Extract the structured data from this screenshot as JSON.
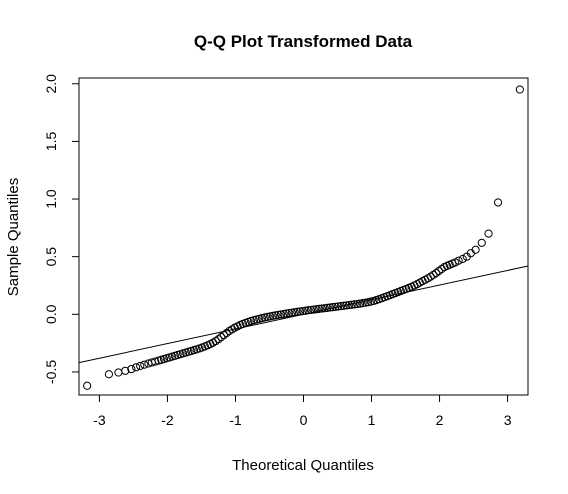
{
  "chart_data": {
    "type": "scatter",
    "title": "Q-Q Plot Transformed Data",
    "xlabel": "Theoretical Quantiles",
    "ylabel": "Sample Quantiles",
    "xlim": [
      -3.3,
      3.3
    ],
    "ylim": [
      -0.7,
      2.05
    ],
    "x_ticks": [
      -3,
      -2,
      -1,
      0,
      1,
      2,
      3
    ],
    "x_tick_labels": [
      "-3",
      "-2",
      "-1",
      "0",
      "1",
      "2",
      "3"
    ],
    "y_ticks": [
      -0.5,
      0.0,
      0.5,
      1.0,
      1.5,
      2.0
    ],
    "y_tick_labels": [
      "-0.5",
      "0.0",
      "0.5",
      "1.0",
      "1.5",
      "2.0"
    ],
    "grid": false,
    "reference_line": {
      "intercept": 0.0,
      "slope": 0.127
    },
    "series": [
      {
        "marker": "open-circle",
        "x": [
          -3.18,
          -2.86,
          -2.72,
          -2.62,
          -2.53,
          -2.46,
          -2.4,
          -2.34,
          -2.28,
          -2.23,
          -2.18,
          -2.13,
          -2.09,
          -2.05,
          -2.01,
          -1.97,
          -1.93,
          -1.89,
          -1.85,
          -1.81,
          -1.77,
          -1.73,
          -1.69,
          -1.65,
          -1.61,
          -1.57,
          -1.53,
          -1.49,
          -1.45,
          -1.41,
          -1.37,
          -1.33,
          -1.29,
          -1.25,
          -1.21,
          -1.17,
          -1.13,
          -1.09,
          -1.05,
          -1.01,
          -0.97,
          -0.93,
          -0.89,
          -0.85,
          -0.81,
          -0.77,
          -0.73,
          -0.69,
          -0.65,
          -0.61,
          -0.57,
          -0.53,
          -0.49,
          -0.45,
          -0.41,
          -0.37,
          -0.33,
          -0.29,
          -0.25,
          -0.21,
          -0.17,
          -0.13,
          -0.09,
          -0.05,
          -0.01,
          0.03,
          0.07,
          0.11,
          0.15,
          0.19,
          0.23,
          0.27,
          0.31,
          0.35,
          0.39,
          0.43,
          0.47,
          0.51,
          0.55,
          0.59,
          0.63,
          0.67,
          0.71,
          0.75,
          0.79,
          0.83,
          0.87,
          0.91,
          0.95,
          0.99,
          1.03,
          1.07,
          1.11,
          1.15,
          1.19,
          1.23,
          1.27,
          1.31,
          1.35,
          1.39,
          1.43,
          1.47,
          1.51,
          1.55,
          1.59,
          1.63,
          1.67,
          1.71,
          1.75,
          1.79,
          1.83,
          1.87,
          1.91,
          1.95,
          1.99,
          2.03,
          2.07,
          2.11,
          2.15,
          2.19,
          2.23,
          2.28,
          2.34,
          2.4,
          2.46,
          2.53,
          2.62,
          2.72,
          2.86,
          3.18
        ],
        "y": [
          -0.62,
          -0.52,
          -0.505,
          -0.49,
          -0.475,
          -0.46,
          -0.448,
          -0.437,
          -0.427,
          -0.418,
          -0.41,
          -0.402,
          -0.395,
          -0.388,
          -0.381,
          -0.374,
          -0.367,
          -0.36,
          -0.353,
          -0.346,
          -0.339,
          -0.332,
          -0.325,
          -0.318,
          -0.311,
          -0.304,
          -0.296,
          -0.288,
          -0.279,
          -0.269,
          -0.258,
          -0.246,
          -0.232,
          -0.216,
          -0.198,
          -0.18,
          -0.162,
          -0.145,
          -0.13,
          -0.116,
          -0.104,
          -0.093,
          -0.083,
          -0.074,
          -0.066,
          -0.058,
          -0.051,
          -0.045,
          -0.039,
          -0.033,
          -0.028,
          -0.023,
          -0.018,
          -0.013,
          -0.009,
          -0.005,
          -0.001,
          0.003,
          0.007,
          0.011,
          0.014,
          0.018,
          0.021,
          0.025,
          0.028,
          0.031,
          0.035,
          0.038,
          0.041,
          0.044,
          0.047,
          0.05,
          0.053,
          0.056,
          0.059,
          0.062,
          0.065,
          0.068,
          0.071,
          0.074,
          0.077,
          0.08,
          0.083,
          0.086,
          0.089,
          0.093,
          0.097,
          0.101,
          0.105,
          0.11,
          0.116,
          0.123,
          0.131,
          0.139,
          0.148,
          0.157,
          0.166,
          0.175,
          0.184,
          0.193,
          0.202,
          0.211,
          0.22,
          0.229,
          0.239,
          0.25,
          0.262,
          0.275,
          0.288,
          0.3,
          0.313,
          0.327,
          0.342,
          0.358,
          0.375,
          0.393,
          0.41,
          0.42,
          0.43,
          0.44,
          0.45,
          0.465,
          0.48,
          0.5,
          0.53,
          0.56,
          0.62,
          0.7,
          0.97,
          1.95
        ]
      }
    ]
  }
}
